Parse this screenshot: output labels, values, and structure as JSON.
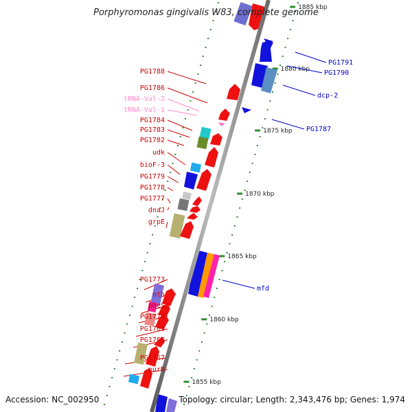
{
  "title": "Porphyromonas gingivalis W83, complete genome",
  "footer": {
    "accession": "Accession: NC_002950",
    "topology": "Topology: circular; Length: 2,343,476 bp; Genes: 1,974"
  },
  "colors": {
    "backbone": "#8a8a8a",
    "tick": "#2e8b2e",
    "gene_red": "#ee1111",
    "gene_blue": "#1212dd",
    "label_red": "#cc0000",
    "label_blue": "#0000cc",
    "label_pink": "#ff88cc"
  },
  "kbp_markers": [
    {
      "label": "1885 kbp"
    },
    {
      "label": "1880 kbp"
    },
    {
      "label": "1875 kbp"
    },
    {
      "label": "1870 kbp"
    },
    {
      "label": "1865 kbp"
    },
    {
      "label": "1860 kbp"
    },
    {
      "label": "1855 kbp"
    }
  ],
  "left_labels": [
    {
      "name": "PG1788",
      "type": "red"
    },
    {
      "name": "PG1786",
      "type": "red"
    },
    {
      "name": "tRNA-Val-2",
      "type": "pink"
    },
    {
      "name": "tRNA-Val-1",
      "type": "pink"
    },
    {
      "name": "PG1784",
      "type": "red"
    },
    {
      "name": "PG1783",
      "type": "red"
    },
    {
      "name": "PG1782",
      "type": "red"
    },
    {
      "name": "udk",
      "type": "red"
    },
    {
      "name": "bioF-3",
      "type": "red"
    },
    {
      "name": "PG1779",
      "type": "red"
    },
    {
      "name": "PG1778",
      "type": "red"
    },
    {
      "name": "PG1777",
      "type": "red"
    },
    {
      "name": "dnaJ",
      "type": "red"
    },
    {
      "name": "grpE",
      "type": "red"
    },
    {
      "name": "PG1773",
      "type": "red"
    },
    {
      "name": "nth",
      "type": "red"
    },
    {
      "name": "pheS",
      "type": "red"
    },
    {
      "name": "PG1770",
      "type": "red"
    },
    {
      "name": "PG1769",
      "type": "red"
    },
    {
      "name": "PG1768",
      "type": "red"
    },
    {
      "name": "PG1767",
      "type": "red"
    },
    {
      "name": "purN",
      "type": "red"
    }
  ],
  "right_labels": [
    {
      "name": "PG1791"
    },
    {
      "name": "PG1790"
    },
    {
      "name": "dcp-2"
    },
    {
      "name": "PG1787"
    },
    {
      "name": "mfd"
    }
  ]
}
